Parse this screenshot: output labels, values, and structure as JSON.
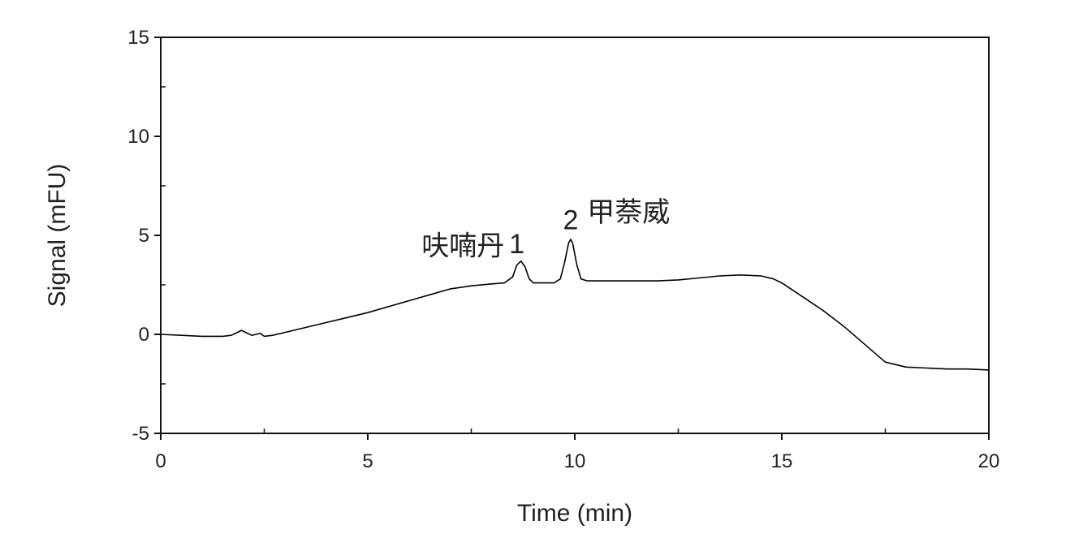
{
  "chart_data": {
    "type": "line",
    "title": "",
    "xlabel": "Time (min)",
    "ylabel": "Signal (mFU)",
    "xlim": [
      0,
      20
    ],
    "ylim": [
      -5,
      15
    ],
    "xticks": [
      0,
      5,
      10,
      15,
      20
    ],
    "xtick_labels": [
      "0",
      "5",
      "10",
      "15",
      "20"
    ],
    "yticks": [
      -5,
      0,
      5,
      10,
      15
    ],
    "ytick_labels": [
      "-5",
      "0",
      "5",
      "10",
      "15"
    ],
    "grid": false,
    "legend": "none",
    "line_color": "#000000",
    "series": [
      {
        "x": [
          0,
          0.5,
          1.0,
          1.5,
          1.7,
          1.85,
          1.95,
          2.05,
          2.2,
          2.3,
          2.4,
          2.5,
          2.7,
          3.0,
          3.5,
          4.0,
          4.5,
          5.0,
          5.5,
          6.0,
          6.5,
          7.0,
          7.5,
          8.0,
          8.3,
          8.5,
          8.6,
          8.7,
          8.8,
          8.9,
          9.0,
          9.2,
          9.5,
          9.65,
          9.75,
          9.85,
          9.9,
          9.95,
          10.05,
          10.15,
          10.3,
          10.5,
          11.0,
          11.5,
          12.0,
          12.5,
          13.0,
          13.5,
          14.0,
          14.5,
          14.8,
          15.0,
          15.5,
          16.0,
          16.5,
          17.0,
          17.5,
          18.0,
          18.5,
          19.0,
          19.5,
          20.0
        ],
        "y": [
          0,
          -0.05,
          -0.1,
          -0.1,
          -0.05,
          0.1,
          0.2,
          0.1,
          -0.05,
          0.0,
          0.05,
          -0.1,
          -0.05,
          0.1,
          0.35,
          0.6,
          0.85,
          1.1,
          1.4,
          1.7,
          2.0,
          2.3,
          2.45,
          2.55,
          2.6,
          2.9,
          3.5,
          3.7,
          3.4,
          2.8,
          2.6,
          2.6,
          2.6,
          2.8,
          3.6,
          4.6,
          4.8,
          4.6,
          3.5,
          2.8,
          2.7,
          2.7,
          2.7,
          2.7,
          2.7,
          2.75,
          2.85,
          2.95,
          3.0,
          2.95,
          2.8,
          2.6,
          1.9,
          1.2,
          0.4,
          -0.5,
          -1.4,
          -1.65,
          -1.7,
          -1.75,
          -1.75,
          -1.8
        ]
      }
    ],
    "annotations": [
      {
        "text": "呋喃丹",
        "x": 7.3,
        "y": 4.0
      },
      {
        "text": "1",
        "x": 8.6,
        "y": 4.1
      },
      {
        "text": "2",
        "x": 9.9,
        "y": 5.3
      },
      {
        "text": "甲萘威",
        "x": 11.3,
        "y": 5.7
      }
    ]
  }
}
